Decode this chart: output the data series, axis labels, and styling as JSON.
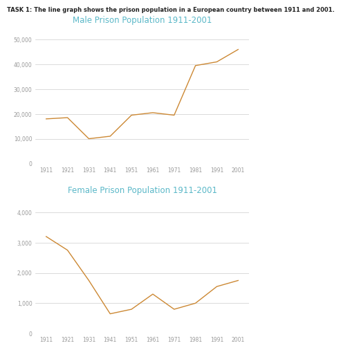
{
  "years": [
    1911,
    1921,
    1931,
    1941,
    1951,
    1961,
    1971,
    1981,
    1991,
    2001
  ],
  "male_values": [
    18000,
    18500,
    10000,
    11000,
    19500,
    20500,
    19500,
    39500,
    41000,
    46000
  ],
  "female_values": [
    3200,
    2750,
    1750,
    650,
    800,
    1300,
    800,
    1000,
    1550,
    1750
  ],
  "male_title": "Male Prison Population 1911-2001",
  "female_title": "Female Prison Population 1911-2001",
  "task_text": "TASK 1: The line graph shows the prison population in a European country between 1911 and 2001.",
  "line_color": "#CC8833",
  "title_color": "#5BB8C8",
  "task_text_color": "#222222",
  "bg_color": "#FFFFFF",
  "grid_color": "#CCCCCC",
  "male_ylim": [
    0,
    55000
  ],
  "female_ylim": [
    0,
    4500
  ],
  "male_yticks": [
    0,
    10000,
    20000,
    30000,
    40000,
    50000
  ],
  "female_yticks": [
    0,
    1000,
    2000,
    3000,
    4000
  ],
  "tick_color": "#999999",
  "title_fontsize": 8.5,
  "task_fontsize": 6.0,
  "tick_fontsize": 5.5
}
